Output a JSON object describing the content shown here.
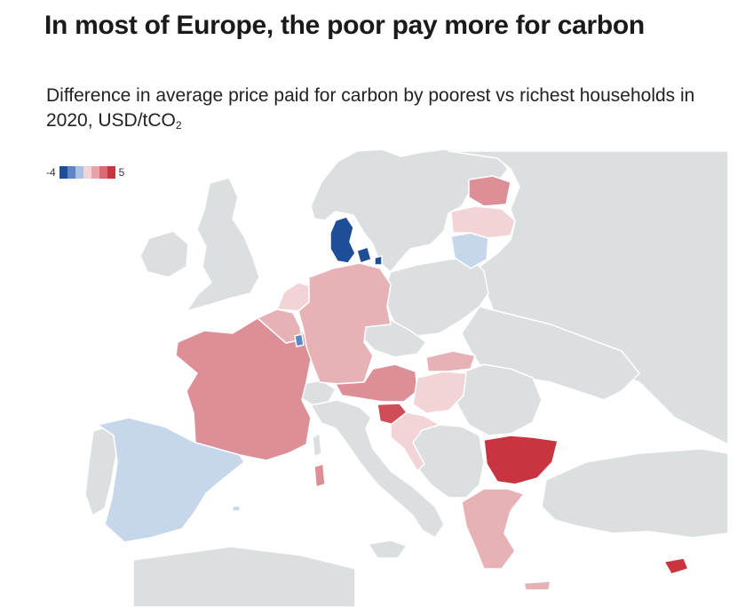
{
  "title": "In most of Europe, the poor pay more for carbon",
  "subtitle": {
    "text": "Difference in average price paid for carbon by poorest vs richest households in 2020, USD/tCO",
    "subscript": "2"
  },
  "legend": {
    "min_label": "-4",
    "max_label": "5",
    "steps": [
      "#1f4e99",
      "#5e86c4",
      "#a9c1e2",
      "#f2d4d6",
      "#e6a4aa",
      "#d96b75",
      "#c8343f"
    ]
  },
  "colors": {
    "no_data": "#dcdfe0",
    "water": "#ffffff",
    "border": "#ffffff"
  },
  "map_data": {
    "type": "choropleth",
    "scale": [
      -4,
      5
    ],
    "regions": [
      {
        "name": "Denmark",
        "value": -4,
        "fill": "#1f4e99"
      },
      {
        "name": "Luxembourg",
        "value": -3,
        "fill": "#5e86c4"
      },
      {
        "name": "Lithuania",
        "value": -1,
        "fill": "#c6d7ec"
      },
      {
        "name": "Spain",
        "value": -1,
        "fill": "#c6d7ec"
      },
      {
        "name": "Latvia",
        "value": 1,
        "fill": "#f2d4d6"
      },
      {
        "name": "Netherlands",
        "value": 1,
        "fill": "#f2d4d6"
      },
      {
        "name": "Hungary",
        "value": 1,
        "fill": "#f2d4d6"
      },
      {
        "name": "Croatia",
        "value": 1,
        "fill": "#f2d4d6"
      },
      {
        "name": "Germany",
        "value": 2,
        "fill": "#e6b2b6"
      },
      {
        "name": "Belgium",
        "value": 2,
        "fill": "#e6b2b6"
      },
      {
        "name": "Slovakia",
        "value": 2,
        "fill": "#e6b2b6"
      },
      {
        "name": "Greece",
        "value": 2,
        "fill": "#e6b2b6"
      },
      {
        "name": "France",
        "value": 3,
        "fill": "#dc8f96"
      },
      {
        "name": "Austria",
        "value": 3,
        "fill": "#dc8f96"
      },
      {
        "name": "Estonia",
        "value": 3,
        "fill": "#dc8f96"
      },
      {
        "name": "Sardinia",
        "value": 3,
        "fill": "#dc8f96"
      },
      {
        "name": "Slovenia",
        "value": 4,
        "fill": "#cf4d57"
      },
      {
        "name": "Bulgaria",
        "value": 5,
        "fill": "#c8343f"
      },
      {
        "name": "Cyprus",
        "value": 5,
        "fill": "#c8343f"
      }
    ]
  }
}
